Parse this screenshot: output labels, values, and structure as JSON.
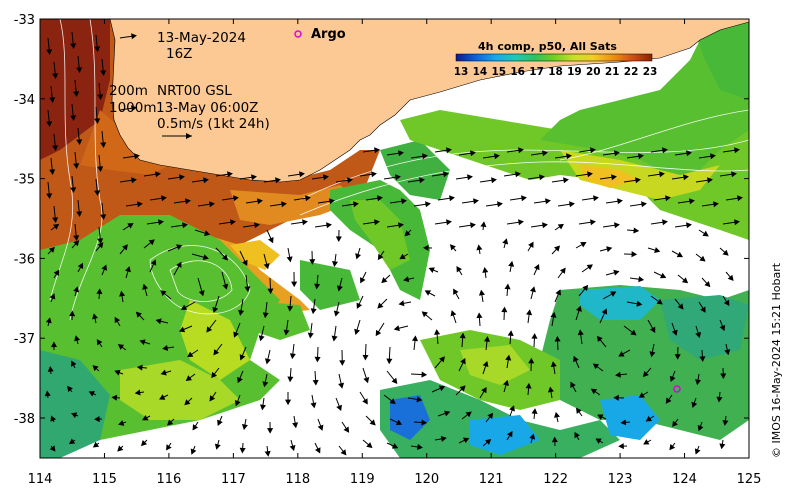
{
  "map": {
    "title_date": "13-May-2024",
    "title_hour": "16Z",
    "depth_line": "200m",
    "product_line": "NRT00 GSL",
    "isobath_line": "1000m",
    "velocity_time": "13-May 06:00Z",
    "scale_label": "0.5m/s (1kt 24h)",
    "argo_label": "Argo",
    "credit": "© IMOS 16-May-2024 15:21 Hobart",
    "colors": {
      "land": "#fcc893",
      "argo_marker": "#e000e0",
      "frame": "#000000"
    }
  },
  "axes": {
    "x_ticks": [
      "114",
      "115",
      "116",
      "117",
      "118",
      "119",
      "120",
      "121",
      "122",
      "123",
      "124",
      "125"
    ],
    "y_ticks": [
      "-33",
      "-34",
      "-35",
      "-36",
      "-37",
      "-38"
    ]
  },
  "colorbar": {
    "title": "4h comp, p50, All Sats",
    "labels": [
      "13",
      "14",
      "15",
      "16",
      "17",
      "18",
      "19",
      "20",
      "21",
      "22",
      "23"
    ],
    "colors": [
      "#0a1a8c",
      "#1060d8",
      "#18a8e8",
      "#20c8b8",
      "#30c060",
      "#70d020",
      "#c8e020",
      "#f0d020",
      "#f09010",
      "#d05010",
      "#902000"
    ]
  }
}
